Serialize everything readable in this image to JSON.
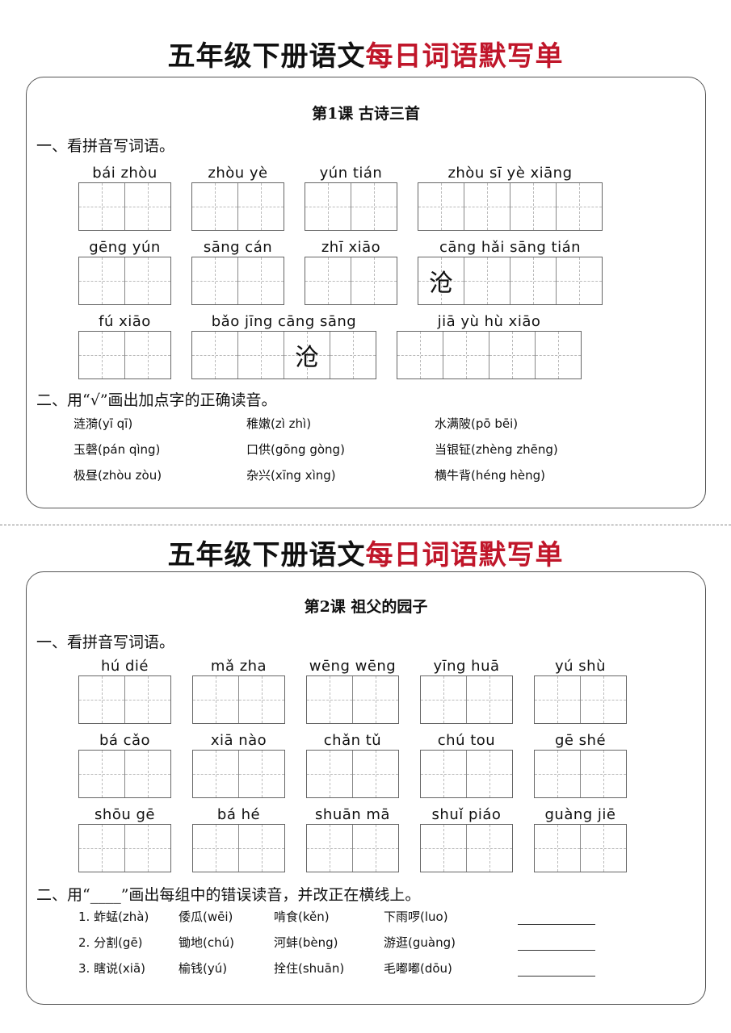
{
  "sheets": [
    {
      "title_black": "五年级下册语文",
      "title_red": "每日词语默写单",
      "lesson": "第1课  古诗三首",
      "sec1": "一、看拼音写词语。",
      "rows": [
        [
          {
            "pinyin": "bái  zhòu",
            "chars": [
              "",
              ""
            ]
          },
          {
            "pinyin": "zhòu  yè",
            "chars": [
              "",
              ""
            ]
          },
          {
            "pinyin": "yún  tián",
            "chars": [
              "",
              ""
            ]
          },
          {
            "pinyin": "zhòu   sī    yè   xiāng",
            "chars": [
              "",
              "",
              "",
              ""
            ]
          }
        ],
        [
          {
            "pinyin": "gēng yún",
            "chars": [
              "",
              ""
            ]
          },
          {
            "pinyin": "sāng cán",
            "chars": [
              "",
              ""
            ]
          },
          {
            "pinyin": "zhī  xiāo",
            "chars": [
              "",
              ""
            ]
          },
          {
            "pinyin": "cāng  hǎi  sāng  tián",
            "chars": [
              "沧",
              "",
              "",
              ""
            ]
          }
        ],
        [
          {
            "pinyin": "fú  xiāo",
            "chars": [
              "",
              ""
            ]
          },
          {
            "pinyin": "bǎo  jīng cāng sāng",
            "chars": [
              "",
              "",
              "沧",
              ""
            ]
          },
          {
            "pinyin": "jiā   yù    hù   xiāo",
            "chars": [
              "",
              "",
              "",
              ""
            ]
          }
        ]
      ],
      "sec2": "二、用“√”画出加点字的正确读音。",
      "items": [
        [
          "涟漪(yī  qī)",
          "稚嫩(zì  zhì)",
          "水满陂(pō  bēi)"
        ],
        [
          "玉磬(pán  qìng)",
          "口供(gōng  gòng)",
          "当银钲(zhèng  zhēng)"
        ],
        [
          "极昼(zhòu  zòu)",
          "杂兴(xīng  xìng)",
          "横牛背(héng  hèng)"
        ]
      ]
    },
    {
      "title_black": "五年级下册语文",
      "title_red": "每日词语默写单",
      "lesson": "第2课  祖父的园子",
      "sec1": "一、看拼音写词语。",
      "rows": [
        [
          {
            "pinyin": "hú   dié",
            "chars": [
              "",
              ""
            ]
          },
          {
            "pinyin": "mǎ  zha",
            "chars": [
              "",
              ""
            ]
          },
          {
            "pinyin": "wēng wēng",
            "chars": [
              "",
              ""
            ]
          },
          {
            "pinyin": "yīng  huā",
            "chars": [
              "",
              ""
            ]
          },
          {
            "pinyin": "yú   shù",
            "chars": [
              "",
              ""
            ]
          }
        ],
        [
          {
            "pinyin": "bá  cǎo",
            "chars": [
              "",
              ""
            ]
          },
          {
            "pinyin": "xiā  nào",
            "chars": [
              "",
              ""
            ]
          },
          {
            "pinyin": "chǎn  tǔ",
            "chars": [
              "",
              ""
            ]
          },
          {
            "pinyin": "chú  tou",
            "chars": [
              "",
              ""
            ]
          },
          {
            "pinyin": "gē  shé",
            "chars": [
              "",
              ""
            ]
          }
        ],
        [
          {
            "pinyin": "shōu  gē",
            "chars": [
              "",
              ""
            ]
          },
          {
            "pinyin": "bá   hé",
            "chars": [
              "",
              ""
            ]
          },
          {
            "pinyin": "shuān mā",
            "chars": [
              "",
              ""
            ]
          },
          {
            "pinyin": "shuǐ  piáo",
            "chars": [
              "",
              ""
            ]
          },
          {
            "pinyin": "guàng jiē",
            "chars": [
              "",
              ""
            ]
          }
        ]
      ],
      "sec2": "二、用“____”画出每组中的错误读音，并改正在横线上。",
      "items": [
        [
          "1. 蚱蜢(zhà)",
          "倭瓜(wēi)",
          "啃食(kěn)",
          "下雨啰(luo)"
        ],
        [
          "2. 分割(gē)",
          "锄地(chú)",
          "河蚌(bèng)",
          "游逛(guàng)"
        ],
        [
          "3. 瞎说(xiā)",
          "榆钱(yú)",
          "拴住(shuān)",
          "毛嘟嘟(dōu)"
        ]
      ]
    }
  ],
  "colors": {
    "title_red": "#c0162a"
  }
}
